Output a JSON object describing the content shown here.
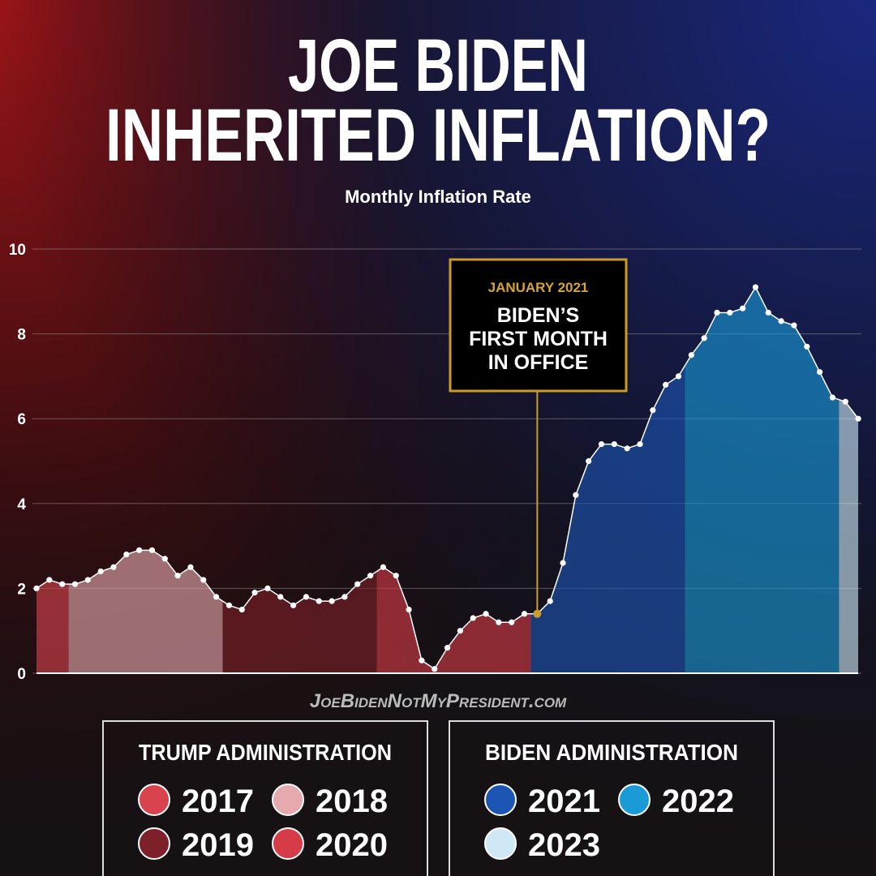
{
  "chart_data": {
    "type": "area",
    "title": [
      "JOE BIDEN",
      "INHERITED INFLATION?"
    ],
    "subtitle": "Monthly Inflation Rate",
    "ylim": [
      0,
      10
    ],
    "yticks": [
      0,
      2,
      4,
      6,
      8,
      10
    ],
    "grid": true,
    "annotation": {
      "title": "JANUARY 2021",
      "text": [
        "BIDEN’S",
        "FIRST MONTH",
        "IN OFFICE"
      ]
    },
    "watermark": "JoeBidenNotMyPresident.com",
    "groups": [
      {
        "title": "TRUMP ADMINISTRATION",
        "series": [
          {
            "name": "2017",
            "color": "#d8434e",
            "values": [
              2.0,
              2.2,
              2.1
            ]
          },
          {
            "name": "2018",
            "color": "#e6a9ae",
            "values": [
              2.1,
              2.2,
              2.4,
              2.5,
              2.8,
              2.9,
              2.9,
              2.7,
              2.3,
              2.5,
              2.2,
              1.8
            ]
          },
          {
            "name": "2019",
            "color": "#7d2029",
            "values": [
              1.6,
              1.5,
              1.9,
              2.0,
              1.8,
              1.6,
              1.8,
              1.7,
              1.7,
              1.8,
              2.1,
              2.3
            ]
          },
          {
            "name": "2020",
            "color": "#d63c47",
            "values": [
              2.5,
              2.3,
              1.5,
              0.3,
              0.1,
              0.6,
              1.0,
              1.3,
              1.4,
              1.2,
              1.2,
              1.4
            ]
          }
        ]
      },
      {
        "title": "BIDEN ADMINISTRATION",
        "series": [
          {
            "name": "2021",
            "color": "#1d55b5",
            "values": [
              1.4,
              1.7,
              2.6,
              4.2,
              5.0,
              5.4,
              5.4,
              5.3,
              5.4,
              6.2,
              6.8,
              7.0
            ]
          },
          {
            "name": "2022",
            "color": "#1a9ad6",
            "values": [
              7.5,
              7.9,
              8.5,
              8.5,
              8.6,
              9.1,
              8.5,
              8.3,
              8.2,
              7.7,
              7.1,
              6.5
            ]
          },
          {
            "name": "2023",
            "color": "#cfe8f5",
            "values": [
              6.4,
              6.0
            ]
          }
        ]
      }
    ]
  }
}
